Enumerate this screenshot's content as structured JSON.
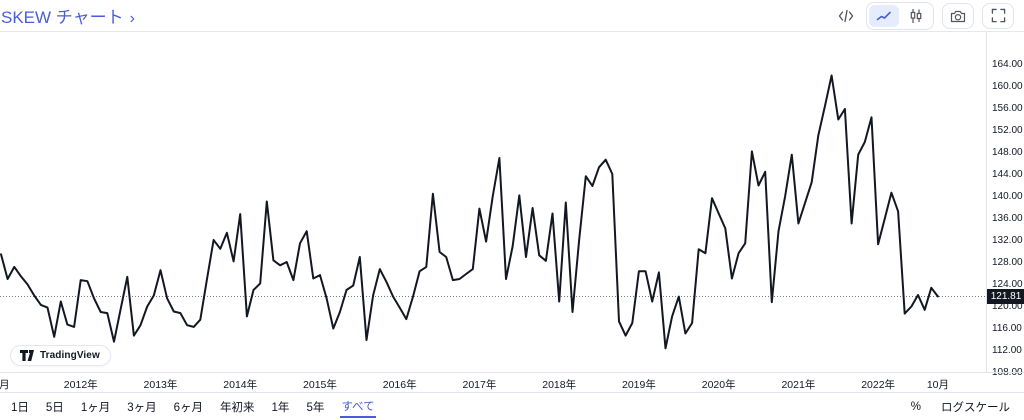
{
  "header": {
    "title": "SKEW チャート",
    "chevron": "›",
    "icons": [
      {
        "name": "code-view-icon"
      },
      {
        "name": "line-chart-icon",
        "selected": true
      },
      {
        "name": "candlestick-icon",
        "selected": false
      },
      {
        "name": "camera-icon"
      },
      {
        "name": "fullscreen-icon"
      }
    ]
  },
  "chart_data": {
    "type": "line",
    "title": "SKEW",
    "frequency": "monthly",
    "x_start": "2011-01",
    "x_end": "2022-10",
    "grid": false,
    "ylim": [
      106,
      166
    ],
    "last_value": 121.81,
    "last_value_label": "121.81",
    "y_tick_labels": [
      "164.00",
      "160.00",
      "156.00",
      "152.00",
      "148.00",
      "144.00",
      "140.00",
      "136.00",
      "132.00",
      "128.00",
      "124.00",
      "120.00",
      "116.00",
      "112.00",
      "108.00"
    ],
    "x_labels": [
      {
        "label": "月",
        "month_index": 0.5
      },
      {
        "label": "2012年",
        "month_index": 12
      },
      {
        "label": "2013年",
        "month_index": 24
      },
      {
        "label": "2014年",
        "month_index": 36
      },
      {
        "label": "2015年",
        "month_index": 48
      },
      {
        "label": "2016年",
        "month_index": 60
      },
      {
        "label": "2017年",
        "month_index": 72
      },
      {
        "label": "2018年",
        "month_index": 84
      },
      {
        "label": "2019年",
        "month_index": 96
      },
      {
        "label": "2020年",
        "month_index": 108
      },
      {
        "label": "2021年",
        "month_index": 120
      },
      {
        "label": "2022年",
        "month_index": 132
      },
      {
        "label": "10月",
        "month_index": 141
      }
    ],
    "values": [
      129.5,
      125.0,
      127.2,
      125.5,
      124.0,
      122.0,
      120.3,
      119.8,
      114.5,
      120.9,
      116.7,
      116.3,
      124.8,
      124.6,
      121.5,
      119.0,
      118.8,
      113.6,
      119.5,
      125.4,
      114.7,
      116.6,
      120.0,
      122.0,
      126.6,
      121.5,
      119.1,
      118.8,
      116.6,
      116.3,
      117.6,
      125.0,
      132.1,
      130.5,
      133.4,
      128.2,
      136.8,
      118.2,
      123.0,
      124.2,
      139.1,
      128.4,
      127.5,
      128.1,
      124.8,
      131.5,
      133.7,
      125.1,
      125.7,
      121.5,
      116.0,
      119.0,
      123.0,
      123.8,
      129.0,
      113.9,
      122.0,
      126.8,
      124.5,
      121.8,
      119.8,
      117.7,
      121.8,
      126.4,
      127.2,
      140.5,
      129.9,
      129.0,
      124.8,
      125.0,
      125.9,
      126.8,
      137.8,
      131.8,
      140.0,
      147.0,
      125.0,
      131.0,
      140.2,
      129.0,
      137.9,
      129.3,
      128.3,
      136.9,
      120.9,
      138.9,
      119.0,
      132.0,
      143.7,
      141.9,
      145.3,
      146.7,
      144.1,
      117.3,
      114.7,
      117.0,
      126.4,
      126.4,
      120.9,
      126.2,
      112.4,
      118.2,
      121.8,
      115.1,
      117.0,
      130.4,
      129.7,
      139.7,
      136.9,
      134.2,
      125.1,
      129.7,
      131.5,
      148.2,
      142.0,
      144.5,
      120.8,
      133.7,
      140.0,
      147.6,
      135.1,
      138.8,
      142.6,
      151.1,
      156.5,
      162.0,
      154.0,
      155.9,
      135.1,
      147.6,
      149.9,
      154.4,
      131.3,
      136.0,
      140.7,
      137.3,
      118.7,
      120.0,
      122.1,
      119.4,
      123.4,
      121.81
    ]
  },
  "attribution": {
    "logo_text": "TradingView"
  },
  "footer": {
    "ranges": [
      {
        "label": "1日"
      },
      {
        "label": "5日"
      },
      {
        "label": "1ヶ月"
      },
      {
        "label": "3ヶ月"
      },
      {
        "label": "6ヶ月"
      },
      {
        "label": "年初来"
      },
      {
        "label": "1年"
      },
      {
        "label": "5年"
      },
      {
        "label": "すべて",
        "selected": true
      }
    ],
    "percent_label": "%",
    "log_scale_label": "ログスケール"
  },
  "colors": {
    "accent_blue": "#4a5be0",
    "line": "#131722",
    "border": "#e0e3eb",
    "badge_bg": "#131722",
    "badge_text": "#ffffff",
    "dotted_line": "#787b86",
    "icon_gray": "#50535e",
    "toggle_selected_bg": "#e4ecfd"
  }
}
